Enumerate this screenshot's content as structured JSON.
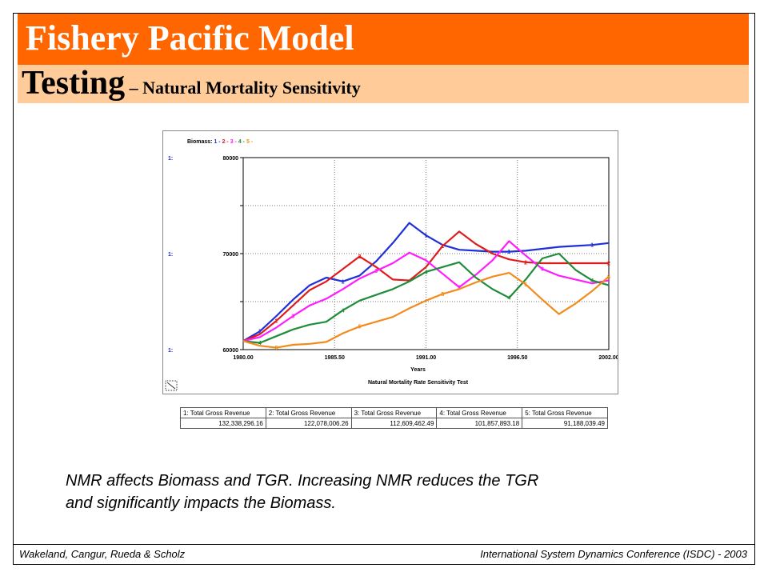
{
  "header": {
    "title": "Fishery Pacific Model",
    "subtitle_main": "Testing",
    "subtitle_rest": " – Natural Mortality Sensitivity"
  },
  "chart_data": {
    "type": "line",
    "legend_prefix": "Biomass: ",
    "legend_items": [
      "1",
      "2",
      "3",
      "4",
      "5"
    ],
    "axis_scale_label": "1:",
    "xlabel": "Years",
    "caption": "Natural Mortality Rate Sensitivity Test",
    "xlim": [
      1980,
      2002
    ],
    "ylim": [
      60000,
      80000
    ],
    "x_ticks": [
      1980.0,
      1985.5,
      1991.0,
      1996.5,
      2002.0
    ],
    "x_tick_labels": [
      "1980.00",
      "1985.50",
      "1991.00",
      "1996.50",
      "2002.00"
    ],
    "y_ticks": [
      60000,
      70000,
      80000
    ],
    "y_tick_labels": [
      "60000",
      "70000",
      "80000"
    ],
    "grid": true,
    "series": [
      {
        "name": "1",
        "color": "#1f2fd9",
        "x": [
          1980,
          1981,
          1982,
          1983,
          1984,
          1985,
          1986,
          1987,
          1988,
          1989,
          1990,
          1991,
          1992,
          1993,
          1994,
          1995,
          1996,
          1997,
          1998,
          1999,
          2000,
          2001,
          2002
        ],
        "y": [
          60900,
          61900,
          63500,
          65200,
          66700,
          67500,
          67100,
          67700,
          69200,
          71100,
          73200,
          71900,
          70900,
          70400,
          70300,
          70200,
          70200,
          70300,
          70500,
          70700,
          70800,
          70900,
          71100
        ]
      },
      {
        "name": "2",
        "color": "#e01b1b",
        "x": [
          1980,
          1981,
          1982,
          1983,
          1984,
          1985,
          1986,
          1987,
          1988,
          1989,
          1990,
          1991,
          1992,
          1993,
          1994,
          1995,
          1996,
          1997,
          1998,
          1999,
          2000,
          2001,
          2002
        ],
        "y": [
          60900,
          61600,
          63000,
          64600,
          66200,
          67100,
          68400,
          69700,
          68600,
          67300,
          67200,
          68600,
          70800,
          72300,
          71000,
          70000,
          69400,
          69100,
          69000,
          69000,
          69000,
          69000,
          69000
        ]
      },
      {
        "name": "3",
        "color": "#ff1cff",
        "x": [
          1980,
          1981,
          1982,
          1983,
          1984,
          1985,
          1986,
          1987,
          1988,
          1989,
          1990,
          1991,
          1992,
          1993,
          1994,
          1995,
          1996,
          1997,
          1998,
          1999,
          2000,
          2001,
          2002
        ],
        "y": [
          60900,
          61300,
          62300,
          63500,
          64600,
          65300,
          66300,
          67400,
          68200,
          69000,
          70100,
          69300,
          67900,
          66500,
          67800,
          69300,
          71300,
          69800,
          68400,
          67700,
          67300,
          66900,
          67200
        ]
      },
      {
        "name": "4",
        "color": "#1f8c3a",
        "x": [
          1980,
          1981,
          1982,
          1983,
          1984,
          1985,
          1986,
          1987,
          1988,
          1989,
          1990,
          1991,
          1992,
          1993,
          1994,
          1995,
          1996,
          1997,
          1998,
          1999,
          2000,
          2001,
          2002
        ],
        "y": [
          60900,
          60700,
          61400,
          62100,
          62600,
          62900,
          64100,
          65100,
          65700,
          66300,
          67100,
          68100,
          68600,
          69100,
          67500,
          66300,
          65400,
          67300,
          69500,
          70000,
          68300,
          67200,
          66700
        ]
      },
      {
        "name": "5",
        "color": "#f28a1c",
        "x": [
          1980,
          1981,
          1982,
          1983,
          1984,
          1985,
          1986,
          1987,
          1988,
          1989,
          1990,
          1991,
          1992,
          1993,
          1994,
          1995,
          1996,
          1997,
          1998,
          1999,
          2000,
          2001,
          2002
        ],
        "y": [
          60900,
          60400,
          60200,
          60500,
          60600,
          60800,
          61700,
          62400,
          62900,
          63400,
          64300,
          65100,
          65800,
          66300,
          67000,
          67600,
          68000,
          66800,
          65200,
          63700,
          64800,
          66100,
          67600
        ]
      }
    ],
    "table": {
      "headers": [
        "1: Total Gross  Revenue",
        "2: Total Gross  Revenue",
        "3: Total Gross  Revenue",
        "4: Total Gross  Revenue",
        "5: Total Gross  Revenue"
      ],
      "values": [
        "132,338,296.16",
        "122,078,006.26",
        "112,609,462.49",
        "101,857,893.18",
        "91,188,039.49"
      ]
    }
  },
  "body": {
    "line1": "NMR affects Biomass and TGR. Increasing NMR reduces the TGR",
    "line2": "and significantly impacts the Biomass."
  },
  "footer": {
    "left": "Wakeland, Cangur, Rueda & Scholz",
    "right": "International System Dynamics Conference (ISDC) - 2003"
  }
}
